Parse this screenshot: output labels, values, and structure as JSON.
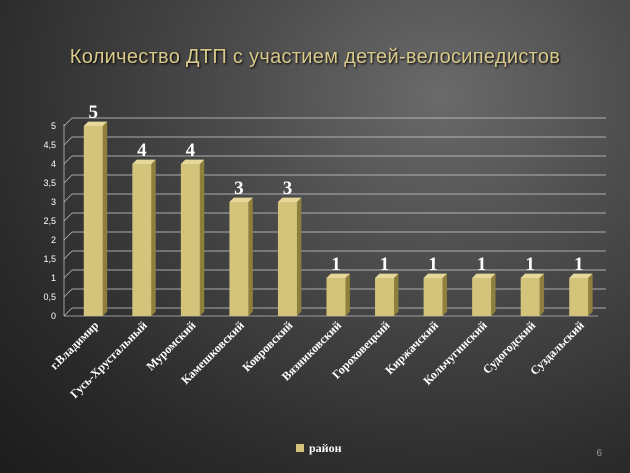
{
  "slide": {
    "title": "Количество ДТП с участием детей-велосипедистов",
    "page_number": "6"
  },
  "colors": {
    "bar_front": "#d4c37a",
    "bar_side": "#8f7f3c",
    "bar_top": "#e6d89a",
    "title": "#d9c98a",
    "axis_text": "#ffffff",
    "data_label": "#ffffff"
  },
  "chart_data": {
    "type": "bar",
    "title": "Количество ДТП с участием детей-велосипедистов",
    "categories": [
      "г.Владимир",
      "Гусь-Хрустальный",
      "Муромский",
      "Камешковский",
      "Ковровский",
      "Вязниковский",
      "Гороховецкий",
      "Киржачский",
      "Кольчугинский",
      "Судогодский",
      "Суздальский"
    ],
    "series": [
      {
        "name": "район",
        "values": [
          5,
          4,
          4,
          3,
          3,
          1,
          1,
          1,
          1,
          1,
          1
        ]
      }
    ],
    "ylim": [
      0,
      5
    ],
    "yticks": [
      "0",
      "0,5",
      "1",
      "1,5",
      "2",
      "2,5",
      "3",
      "3,5",
      "4",
      "4,5",
      "5"
    ],
    "grid": true,
    "legend": "bottom",
    "data_labels": [
      "5",
      "4",
      "4",
      "3",
      "3",
      "1",
      "1",
      "1",
      "1",
      "1",
      "1"
    ]
  }
}
